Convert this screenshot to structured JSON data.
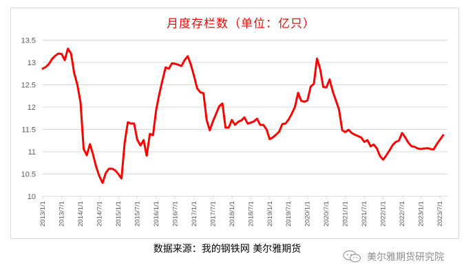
{
  "chart_data": {
    "type": "line",
    "title": "月度存栏数（单位：亿只）",
    "xlabel": "",
    "ylabel": "",
    "ylim": [
      10,
      13.5
    ],
    "yticks": [
      10,
      10.5,
      11,
      11.5,
      12,
      12.5,
      13,
      13.5
    ],
    "ytick_labels": [
      "10",
      "10.5",
      "11",
      "11.5",
      "12",
      "12.5",
      "13",
      "13.5"
    ],
    "xtick_labels": [
      "2013/1/1",
      "2013/7/1",
      "2014/1/1",
      "2014/7/1",
      "2015/1/1",
      "2015/7/1",
      "2016/1/1",
      "2016/7/1",
      "2017/1/1",
      "2017/7/1",
      "2018/1/1",
      "2018/7/1",
      "2019/1/1",
      "2019/7/1",
      "2020/1/1",
      "2020/7/1",
      "2021/1/1",
      "2021/7/1",
      "2022/1/1",
      "2022/7/1",
      "2023/1/1",
      "2023/7/1"
    ],
    "grid": true,
    "legend": null,
    "x_start": "2013/1",
    "x_frequency": "monthly",
    "series": [
      {
        "name": "月度存栏数",
        "color": "#ff0000",
        "values": [
          12.86,
          12.9,
          12.97,
          13.08,
          13.15,
          13.2,
          13.19,
          13.05,
          13.31,
          13.2,
          12.76,
          12.5,
          12.1,
          11.06,
          10.92,
          11.17,
          10.93,
          10.65,
          10.45,
          10.3,
          10.52,
          10.62,
          10.62,
          10.58,
          10.5,
          10.4,
          11.2,
          11.66,
          11.63,
          11.63,
          11.27,
          11.14,
          11.26,
          10.91,
          11.4,
          11.37,
          11.94,
          12.3,
          12.6,
          12.89,
          12.86,
          12.98,
          12.97,
          12.95,
          12.92,
          13.05,
          13.14,
          12.95,
          12.7,
          12.42,
          12.33,
          12.31,
          11.71,
          11.48,
          11.68,
          11.85,
          12.02,
          12.08,
          11.54,
          11.54,
          11.71,
          11.6,
          11.67,
          11.7,
          11.77,
          11.63,
          11.65,
          11.68,
          11.74,
          11.6,
          11.6,
          11.5,
          11.28,
          11.32,
          11.38,
          11.45,
          11.62,
          11.63,
          11.72,
          11.85,
          12.0,
          12.32,
          12.14,
          12.12,
          12.15,
          12.46,
          12.52,
          13.09,
          12.86,
          12.45,
          12.44,
          12.62,
          12.35,
          12.15,
          11.94,
          11.48,
          11.44,
          11.49,
          11.42,
          11.38,
          11.35,
          11.32,
          11.22,
          11.26,
          11.12,
          11.16,
          11.07,
          10.9,
          10.82,
          10.92,
          11.03,
          11.15,
          11.22,
          11.25,
          11.42,
          11.32,
          11.2,
          11.12,
          11.11,
          11.07,
          11.06,
          11.07,
          11.08,
          11.06,
          11.05,
          11.17,
          11.27,
          11.37
        ]
      }
    ]
  },
  "footer": {
    "source": "数据来源：我的钢铁网  美尔雅期货",
    "watermark": "美尔雅期货研究院"
  },
  "colors": {
    "line": "#ff0000",
    "title": "#ff0000",
    "grid": "#d9d9d9",
    "axis_text": "#595959"
  }
}
